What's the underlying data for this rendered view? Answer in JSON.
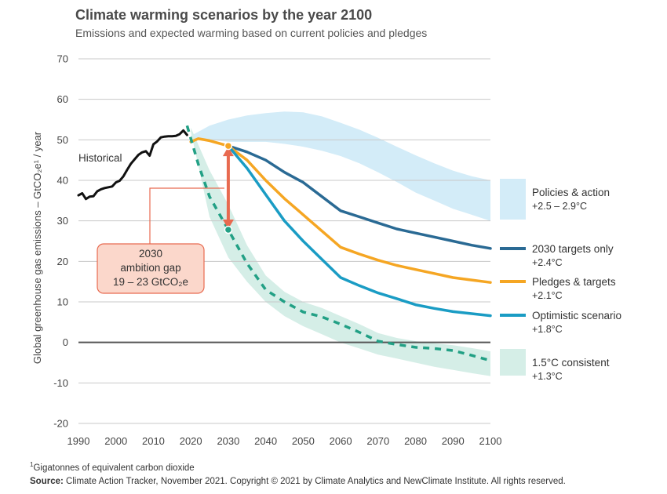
{
  "header": {
    "title": "Climate warming scenarios by the year 2100",
    "subtitle": "Emissions and expected warming based on current policies and pledges"
  },
  "footer": {
    "footnote_marker": "1",
    "footnote": "Gigatonnes of equivalent carbon dioxide",
    "source_label": "Source:",
    "source_text": "Climate Action Tracker, November 2021. Copyright © 2021 by Climate Analytics and NewClimate Institute. All rights reserved."
  },
  "colors": {
    "historical": "#111111",
    "policies_band": "#d3ecf8",
    "targets_2030": "#2a6a94",
    "pledges": "#f5a623",
    "optimistic": "#1a9cc4",
    "consistent": "#22a085",
    "consistent_band": "#d5eee7",
    "gap_arrow": "#e86a50",
    "gap_box_fill": "#fbd7cb",
    "gap_box_stroke": "#e86a50",
    "grid": "#c8c8c8",
    "zero_line": "#555555"
  },
  "chart_data": {
    "type": "line",
    "title": "Climate warming scenarios by the year 2100",
    "subtitle": "Emissions and expected warming based on current policies and pledges",
    "xlabel": "",
    "ylabel": "Global greenhouse gas emissions – GtCO₂e¹ / year",
    "xlim": [
      1990,
      2100
    ],
    "ylim": [
      -20,
      70
    ],
    "xticks": [
      "1990",
      "2000",
      "2010",
      "2020",
      "2030",
      "2040",
      "2050",
      "2060",
      "2070",
      "2080",
      "2090",
      "2100"
    ],
    "yticks": [
      "70",
      "60",
      "50",
      "40",
      "30",
      "20",
      "10",
      "0",
      "-10",
      "-20"
    ],
    "grid": "horizontal",
    "series": [
      {
        "key": "historical",
        "name": "Historical",
        "style": "solid",
        "x": [
          1990,
          1991,
          1992,
          1993,
          1994,
          1995,
          1996,
          1997,
          1998,
          1999,
          2000,
          2001,
          2002,
          2003,
          2004,
          2005,
          2006,
          2007,
          2008,
          2009,
          2010,
          2011,
          2012,
          2013,
          2014,
          2015,
          2016,
          2017,
          2018,
          2019
        ],
        "values": [
          36.3,
          36.8,
          35.4,
          36.0,
          36.1,
          37.3,
          37.8,
          38.1,
          38.3,
          38.5,
          39.5,
          39.9,
          41.0,
          42.6,
          44.1,
          45.2,
          46.3,
          46.9,
          47.2,
          46.1,
          48.9,
          49.6,
          50.6,
          50.8,
          50.9,
          50.9,
          51.0,
          51.4,
          52.3,
          51.2
        ]
      },
      {
        "key": "targets_2030",
        "name": "2030 targets only",
        "warming": "+2.4°C",
        "style": "solid",
        "x": [
          2030,
          2035,
          2040,
          2045,
          2050,
          2055,
          2060,
          2065,
          2070,
          2075,
          2080,
          2085,
          2090,
          2095,
          2100
        ],
        "values": [
          48.5,
          47,
          45,
          42,
          39.5,
          36,
          32.5,
          31,
          29.5,
          28,
          27,
          26,
          25,
          24,
          23.2
        ]
      },
      {
        "key": "pledges",
        "name": "Pledges & targets",
        "warming": "+2.1°C",
        "style": "solid",
        "x": [
          2020,
          2022,
          2025,
          2030,
          2035,
          2040,
          2045,
          2050,
          2055,
          2060,
          2065,
          2070,
          2075,
          2080,
          2085,
          2090,
          2095,
          2100
        ],
        "values": [
          49.5,
          50.3,
          49.8,
          48.5,
          45,
          40,
          35.5,
          31.5,
          27.5,
          23.5,
          21.8,
          20.3,
          19,
          18,
          17,
          16,
          15.4,
          14.8
        ]
      },
      {
        "key": "optimistic",
        "name": "Optimistic scenario",
        "warming": "+1.8°C",
        "style": "solid",
        "x": [
          2030,
          2035,
          2040,
          2045,
          2050,
          2055,
          2060,
          2065,
          2070,
          2075,
          2080,
          2085,
          2090,
          2095,
          2100
        ],
        "values": [
          48.5,
          43,
          36.5,
          30,
          25,
          20.5,
          16,
          14,
          12.2,
          10.8,
          9.3,
          8.4,
          7.6,
          7.1,
          6.6
        ]
      },
      {
        "key": "consistent",
        "name": "1.5°C consistent",
        "warming": "+1.3°C",
        "style": "dashed",
        "x": [
          2019,
          2022,
          2025,
          2030,
          2035,
          2040,
          2045,
          2050,
          2055,
          2060,
          2065,
          2070,
          2075,
          2080,
          2085,
          2090,
          2095,
          2100
        ],
        "values": [
          53.5,
          44,
          36,
          27.8,
          19.5,
          13,
          10,
          7.5,
          6.3,
          4.5,
          2.5,
          0.3,
          -0.5,
          -1.2,
          -1.5,
          -2,
          -3.2,
          -4.5
        ]
      }
    ],
    "bands": [
      {
        "key": "policies_band",
        "name": "Policies & action",
        "warming": "+2.5 – 2.9°C",
        "x": [
          2020,
          2025,
          2030,
          2035,
          2040,
          2045,
          2050,
          2055,
          2060,
          2065,
          2070,
          2075,
          2080,
          2085,
          2090,
          2095,
          2100
        ],
        "upper": [
          51,
          53.5,
          55,
          56,
          56.6,
          57,
          56.8,
          55.8,
          54.2,
          52.5,
          50.5,
          48.3,
          46.2,
          44.2,
          42.4,
          41,
          40
        ],
        "lower": [
          50.5,
          50,
          49.5,
          49.5,
          49.5,
          49,
          48.3,
          47.3,
          46,
          44.2,
          42,
          39.6,
          37,
          35,
          33,
          31.5,
          30
        ]
      },
      {
        "key": "consistent_band",
        "name": "1.5°C consistent",
        "x": [
          2020,
          2025,
          2030,
          2035,
          2040,
          2045,
          2050,
          2055,
          2060,
          2065,
          2070,
          2075,
          2080,
          2085,
          2090,
          2095,
          2100
        ],
        "upper": [
          53,
          42.5,
          34,
          24,
          16.5,
          12.5,
          10,
          8.5,
          6.5,
          4.5,
          2.3,
          1.1,
          0.3,
          -0.2,
          -0.7,
          -1.4,
          -2.2
        ],
        "lower": [
          52,
          31,
          21,
          15,
          10,
          6.5,
          4,
          2,
          0,
          -1.5,
          -3,
          -4,
          -5,
          -6,
          -6.8,
          -7.6,
          -8.3
        ]
      }
    ],
    "ambition_gap": {
      "year": 2030,
      "from": 48.5,
      "to": 27.8,
      "label_line1": "2030",
      "label_line2": "ambition gap",
      "label_line3": "19 – 23 GtCO₂e"
    },
    "labels": {
      "historical": "Historical"
    },
    "legend": {
      "placement": "right",
      "items": [
        {
          "key": "policies",
          "title": "Policies & action",
          "sub": "+2.5 – 2.9°C",
          "kind": "band",
          "color": "#d3ecf8"
        },
        {
          "key": "targets_2030",
          "title": "2030 targets only",
          "sub": "+2.4°C",
          "kind": "line",
          "color": "#2a6a94"
        },
        {
          "key": "pledges",
          "title": "Pledges & targets",
          "sub": "+2.1°C",
          "kind": "line",
          "color": "#f5a623"
        },
        {
          "key": "optimistic",
          "title": "Optimistic scenario",
          "sub": "+1.8°C",
          "kind": "line",
          "color": "#1a9cc4"
        },
        {
          "key": "consistent",
          "title": "1.5°C consistent",
          "sub": "+1.3°C",
          "kind": "band",
          "color": "#d5eee7"
        }
      ]
    }
  }
}
